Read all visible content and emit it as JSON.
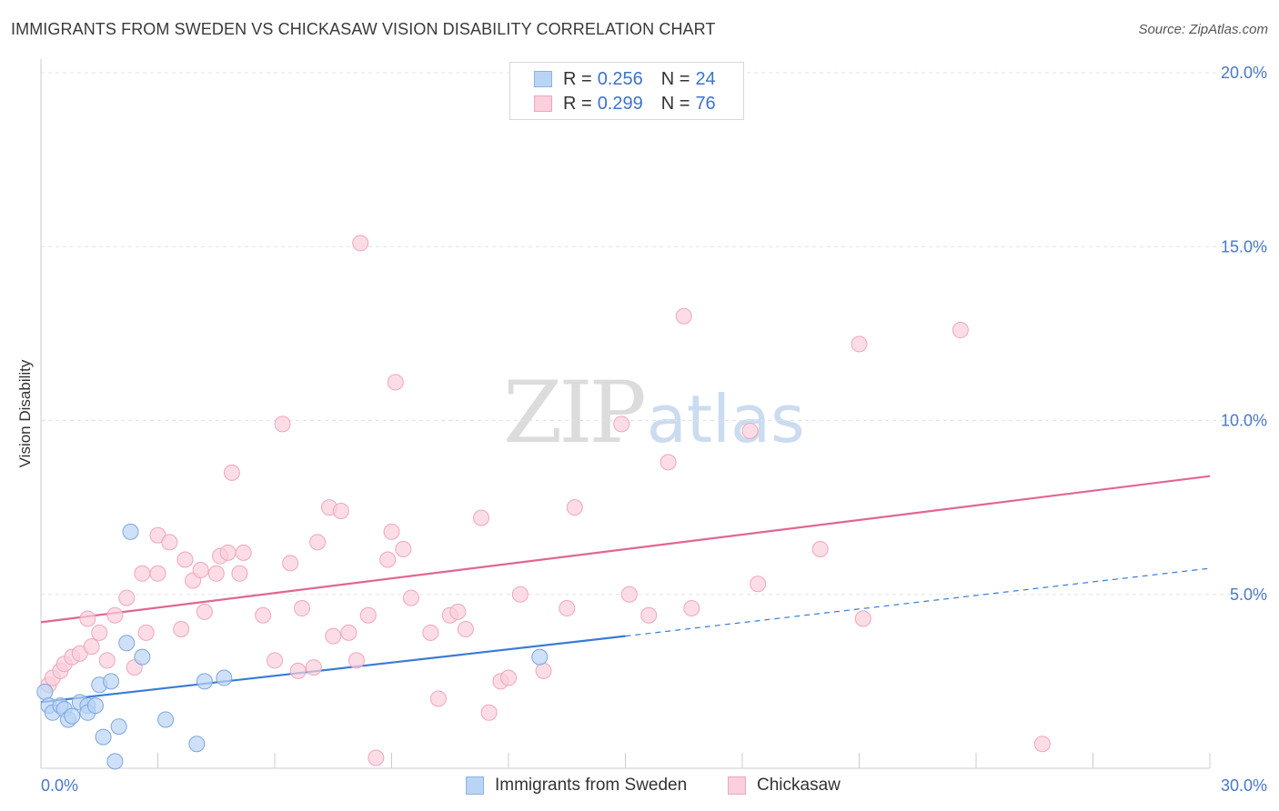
{
  "title": "IMMIGRANTS FROM SWEDEN VS CHICKASAW VISION DISABILITY CORRELATION CHART",
  "source": "Source: ZipAtlas.com",
  "watermark": {
    "zip": "ZIP",
    "atlas": "atlas"
  },
  "legend_top": [
    {
      "r_label": "R = ",
      "r_value": "0.256",
      "n_label": "N = ",
      "n_value": "24",
      "fill": "#b9d4f5",
      "stroke": "#8fb1e3"
    },
    {
      "r_label": "R = ",
      "r_value": "0.299",
      "n_label": "N = ",
      "n_value": "76",
      "fill": "#fbcfdc",
      "stroke": "#f0a6bd"
    }
  ],
  "legend_bottom": [
    {
      "label": "Immigrants from Sweden",
      "fill": "#b9d4f5",
      "stroke": "#8fb1e3"
    },
    {
      "label": "Chickasaw",
      "fill": "#fbcfdc",
      "stroke": "#f0a6bd"
    }
  ],
  "chart_data": {
    "type": "scatter",
    "title": "IMMIGRANTS FROM SWEDEN VS CHICKASAW VISION DISABILITY CORRELATION CHART",
    "xlabel": "",
    "ylabel": "Vision Disability",
    "xlim": [
      0,
      30
    ],
    "ylim": [
      0,
      20
    ],
    "x_tick_labels": [
      "0.0%",
      "30.0%"
    ],
    "y_ticks": [
      5,
      10,
      15,
      20
    ],
    "y_tick_labels": [
      "5.0%",
      "10.0%",
      "15.0%",
      "20.0%"
    ],
    "grid": true,
    "legend_position": "top-center",
    "series": [
      {
        "name": "Immigrants from Sweden",
        "color": "#3a7bd5",
        "marker_fill": "#b9d4f5",
        "marker_stroke": "#7ea6de",
        "r": 0.256,
        "n": 24,
        "trend": {
          "x0": 0,
          "y0": 1.9,
          "x1": 15,
          "y1": 3.8,
          "dashed_to_x": 30,
          "dashed_to_y": 5.75
        },
        "points": [
          [
            0.1,
            2.2
          ],
          [
            0.2,
            1.8
          ],
          [
            0.3,
            1.6
          ],
          [
            0.5,
            1.8
          ],
          [
            0.6,
            1.7
          ],
          [
            0.7,
            1.4
          ],
          [
            0.8,
            1.5
          ],
          [
            1.0,
            1.9
          ],
          [
            1.2,
            1.8
          ],
          [
            1.2,
            1.6
          ],
          [
            1.4,
            1.8
          ],
          [
            1.5,
            2.4
          ],
          [
            1.6,
            0.9
          ],
          [
            1.8,
            2.5
          ],
          [
            1.9,
            0.2
          ],
          [
            2.0,
            1.2
          ],
          [
            2.2,
            3.6
          ],
          [
            2.3,
            6.8
          ],
          [
            2.6,
            3.2
          ],
          [
            3.2,
            1.4
          ],
          [
            4.0,
            0.7
          ],
          [
            4.2,
            2.5
          ],
          [
            4.7,
            2.6
          ],
          [
            12.8,
            3.2
          ]
        ]
      },
      {
        "name": "Chickasaw",
        "color": "#e26592",
        "marker_fill": "#fbcfdc",
        "marker_stroke": "#f0a6bd",
        "r": 0.299,
        "n": 76,
        "trend": {
          "x0": 0,
          "y0": 4.2,
          "x1": 30,
          "y1": 8.4
        },
        "points": [
          [
            0.2,
            2.4
          ],
          [
            0.3,
            2.6
          ],
          [
            0.5,
            2.8
          ],
          [
            0.6,
            3.0
          ],
          [
            0.8,
            3.2
          ],
          [
            1.0,
            3.3
          ],
          [
            1.2,
            4.3
          ],
          [
            1.3,
            3.5
          ],
          [
            1.5,
            3.9
          ],
          [
            1.7,
            3.1
          ],
          [
            1.9,
            4.4
          ],
          [
            2.2,
            4.9
          ],
          [
            2.4,
            2.9
          ],
          [
            2.6,
            5.6
          ],
          [
            2.7,
            3.9
          ],
          [
            3.0,
            5.6
          ],
          [
            3.0,
            6.7
          ],
          [
            3.3,
            6.5
          ],
          [
            3.6,
            4.0
          ],
          [
            3.7,
            6.0
          ],
          [
            3.9,
            5.4
          ],
          [
            4.1,
            5.7
          ],
          [
            4.2,
            4.5
          ],
          [
            4.5,
            5.6
          ],
          [
            4.6,
            6.1
          ],
          [
            4.8,
            6.2
          ],
          [
            4.9,
            8.5
          ],
          [
            5.1,
            5.6
          ],
          [
            5.2,
            6.2
          ],
          [
            5.7,
            4.4
          ],
          [
            6.0,
            3.1
          ],
          [
            6.2,
            9.9
          ],
          [
            6.4,
            5.9
          ],
          [
            6.6,
            2.8
          ],
          [
            6.7,
            4.6
          ],
          [
            7.0,
            2.9
          ],
          [
            7.1,
            6.5
          ],
          [
            7.4,
            7.5
          ],
          [
            7.5,
            3.8
          ],
          [
            7.7,
            7.4
          ],
          [
            7.9,
            3.9
          ],
          [
            8.1,
            3.1
          ],
          [
            8.2,
            15.1
          ],
          [
            8.4,
            4.4
          ],
          [
            8.6,
            0.3
          ],
          [
            8.9,
            6.0
          ],
          [
            9.0,
            6.8
          ],
          [
            9.1,
            11.1
          ],
          [
            9.3,
            6.3
          ],
          [
            9.5,
            4.9
          ],
          [
            10.0,
            3.9
          ],
          [
            10.2,
            2.0
          ],
          [
            10.5,
            4.4
          ],
          [
            10.7,
            4.5
          ],
          [
            10.9,
            4.0
          ],
          [
            11.3,
            7.2
          ],
          [
            11.5,
            1.6
          ],
          [
            11.8,
            2.5
          ],
          [
            12.0,
            2.6
          ],
          [
            12.3,
            5.0
          ],
          [
            12.9,
            2.8
          ],
          [
            13.5,
            4.6
          ],
          [
            13.7,
            7.5
          ],
          [
            14.9,
            9.9
          ],
          [
            15.1,
            5.0
          ],
          [
            15.6,
            4.4
          ],
          [
            16.1,
            8.8
          ],
          [
            16.5,
            13.0
          ],
          [
            16.7,
            4.6
          ],
          [
            18.2,
            9.7
          ],
          [
            18.4,
            5.3
          ],
          [
            20.0,
            6.3
          ],
          [
            21.0,
            12.2
          ],
          [
            21.1,
            4.3
          ],
          [
            23.6,
            12.6
          ],
          [
            25.7,
            0.7
          ]
        ]
      }
    ]
  }
}
